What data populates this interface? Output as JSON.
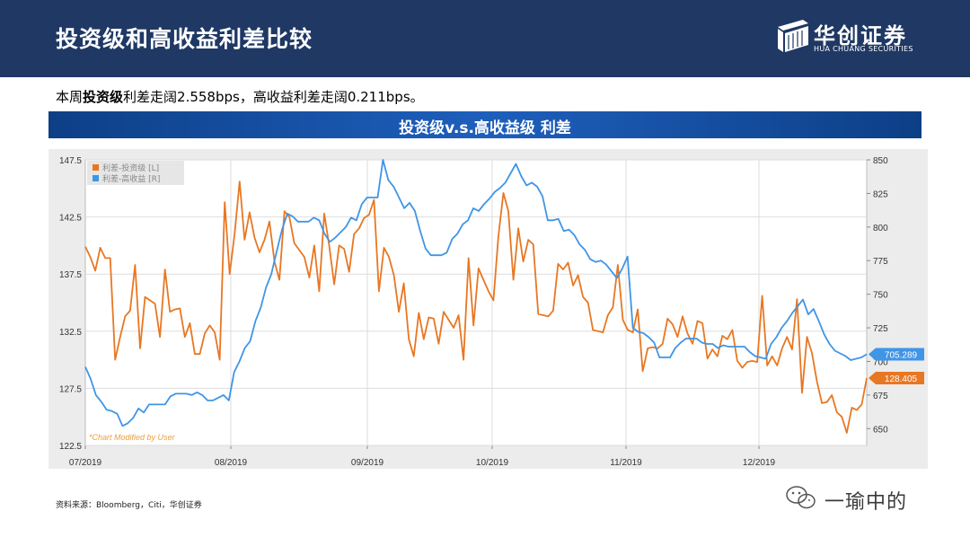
{
  "header": {
    "title": "投资级和高收益利差比较"
  },
  "logo": {
    "name_cn": "华创证券",
    "name_en": "HUA CHUANG SECURITIES"
  },
  "summary": {
    "prefix": "本周",
    "bold": "投资级",
    "rest": "利差走阔2.558bps，高收益利差走阔0.211bps。"
  },
  "banner": {
    "title": "投资级v.s.高收益级 利差"
  },
  "source": "资料来源：Bloomberg，Citi，华创证券",
  "watermark": "一瑜中的",
  "colors": {
    "ig": "#e87722",
    "hy": "#3f95e6",
    "header": "#1f3864"
  },
  "chart_data": {
    "type": "line",
    "note": "*Chart Modified by User",
    "x_labels": [
      "07/2019",
      "08/2019",
      "09/2019",
      "10/2019",
      "11/2019",
      "12/2019"
    ],
    "left_axis": {
      "ticks": [
        "122.5",
        "127.5",
        "132.5",
        "137.5",
        "142.5",
        "147.5"
      ],
      "ylim": [
        122.5,
        147.5
      ]
    },
    "right_axis": {
      "ticks": [
        "650",
        "675",
        "700",
        "725",
        "750",
        "775",
        "800",
        "825",
        "850"
      ],
      "ylim": [
        637.5,
        850
      ]
    },
    "legend": [
      "利差-投资级 [L]",
      "利差-高收益 [R]"
    ],
    "last_values": {
      "ig": "128.405",
      "hy": "705.289"
    },
    "series": [
      {
        "name": "利差-投资级 [L]",
        "axis": "left",
        "values": [
          139.9,
          139.0,
          137.8,
          139.8,
          138.9,
          138.9,
          130.0,
          132.0,
          133.8,
          134.3,
          138.3,
          131.0,
          135.5,
          135.2,
          134.9,
          132.0,
          137.9,
          134.2,
          134.4,
          134.5,
          132.0,
          133.2,
          130.5,
          130.5,
          132.3,
          133.0,
          132.4,
          130.0,
          143.8,
          137.5,
          141.0,
          145.6,
          140.5,
          142.9,
          140.7,
          139.4,
          140.5,
          142.1,
          138.6,
          137.0,
          143.0,
          142.5,
          140.2,
          139.6,
          139.0,
          137.2,
          140.0,
          136.0,
          142.8,
          140.0,
          136.6,
          140.0,
          139.7,
          137.7,
          141.0,
          141.5,
          142.4,
          142.7,
          144.0,
          136.0,
          139.8,
          139.0,
          137.4,
          134.2,
          136.7,
          131.8,
          130.3,
          134.1,
          131.8,
          133.7,
          133.6,
          131.4,
          134.2,
          133.5,
          132.8,
          133.9,
          130.0,
          138.9,
          133.0,
          138.0,
          137.0,
          136.0,
          135.2,
          140.8,
          144.6,
          143.0,
          137.0,
          141.5,
          138.6,
          140.5,
          140.1,
          134.0,
          133.9,
          133.8,
          134.3,
          138.4,
          137.9,
          138.5,
          136.5,
          137.4,
          135.5,
          135.0,
          132.6,
          132.5,
          132.4,
          133.9,
          134.6,
          138.3,
          133.5,
          132.6,
          132.4,
          134.4,
          129.0,
          131.0,
          131.1,
          131.0,
          131.4,
          133.6,
          133.1,
          132.0,
          133.8,
          132.3,
          131.4,
          133.4,
          133.2,
          130.1,
          130.9,
          130.3,
          132.1,
          131.8,
          132.6,
          129.9,
          129.3,
          129.8,
          129.9,
          129.8,
          135.6,
          129.5,
          130.3,
          129.5,
          131.0,
          132.0,
          130.9,
          135.3,
          127.1,
          132.0,
          130.6,
          128.1,
          126.2,
          126.3,
          126.9,
          125.4,
          125.0,
          123.6,
          125.8,
          125.6,
          126.1,
          128.4
        ]
      },
      {
        "name": "利差-高收益 [R]",
        "axis": "right",
        "values": [
          696.0,
          687.0,
          675.0,
          670.0,
          664.0,
          663.0,
          661.0,
          652.0,
          654.0,
          658.0,
          665.0,
          662.0,
          668.0,
          668.0,
          668.0,
          668.0,
          674.0,
          676.0,
          676.0,
          676.0,
          675.0,
          677.0,
          675.0,
          671.0,
          671.0,
          673.0,
          675.0,
          671.0,
          692.0,
          700.0,
          710.0,
          715.0,
          730.0,
          740.0,
          755.0,
          765.0,
          782.0,
          798.0,
          810.0,
          808.0,
          804.0,
          804.0,
          804.0,
          807.0,
          805.0,
          795.0,
          789.0,
          792.0,
          796.0,
          800.0,
          807.0,
          805.0,
          817.0,
          822.0,
          822.0,
          822.0,
          850.0,
          835.0,
          830.0,
          822.0,
          814.0,
          818.0,
          812.0,
          797.0,
          784.0,
          779.0,
          779.0,
          779.0,
          781.0,
          791.0,
          795.0,
          802.0,
          805.0,
          814.0,
          812.0,
          817.0,
          821.0,
          826.0,
          829.0,
          833.0,
          840.0,
          847.0,
          838.0,
          831.0,
          833.0,
          830.0,
          823.0,
          805.0,
          805.0,
          806.0,
          797.0,
          798.0,
          794.0,
          787.0,
          783.0,
          776.0,
          774.0,
          775.0,
          772.0,
          767.0,
          762.0,
          769.0,
          778.0,
          725.0,
          722.0,
          721.0,
          718.0,
          714.0,
          703.0,
          703.0,
          703.0,
          710.0,
          714.0,
          717.0,
          717.0,
          717.0,
          714.0,
          713.0,
          713.0,
          710.0,
          712.0,
          711.0,
          711.0,
          711.0,
          711.0,
          707.0,
          704.0,
          703.0,
          702.0,
          713.0,
          718.0,
          725.0,
          730.0,
          736.0,
          741.0,
          746.0,
          735.0,
          739.0,
          730.0,
          720.0,
          713.0,
          708.0,
          706.0,
          704.0,
          701.0,
          702.0,
          703.0,
          705.3
        ]
      }
    ]
  }
}
